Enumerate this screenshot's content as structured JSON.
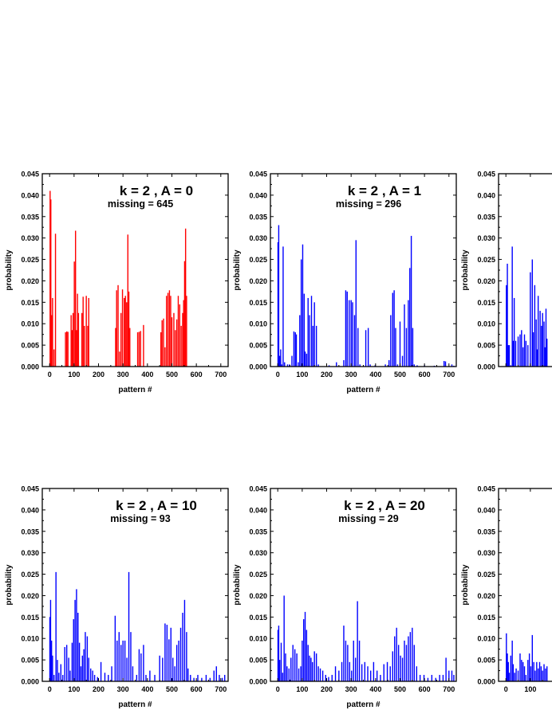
{
  "chart_data": [
    {
      "type": "bar",
      "title": "k = 2 , A = 0",
      "subtitle": "missing = 645",
      "xlabel": "pattern #",
      "ylabel": "probability",
      "xlim": [
        -30,
        730
      ],
      "ylim": [
        0,
        0.045
      ],
      "xticks": [
        "0",
        "100",
        "200",
        "300",
        "400",
        "500",
        "600",
        "700"
      ],
      "yticks": [
        "0.000",
        "0.005",
        "0.010",
        "0.015",
        "0.020",
        "0.025",
        "0.030",
        "0.035",
        "0.040",
        "0.045"
      ],
      "color": "#ff0000",
      "x": [
        2,
        5,
        9,
        12,
        18,
        24,
        65,
        70,
        75,
        88,
        92,
        96,
        101,
        106,
        110,
        114,
        118,
        132,
        137,
        142,
        150,
        156,
        160,
        270,
        274,
        280,
        286,
        292,
        298,
        305,
        310,
        315,
        320,
        324,
        328,
        360,
        366,
        372,
        384,
        455,
        460,
        466,
        472,
        478,
        484,
        490,
        495,
        500,
        508,
        514,
        520,
        526,
        532,
        538,
        544,
        548,
        552,
        556,
        560
      ],
      "values": [
        0.041,
        0.039,
        0.012,
        0.016,
        0.004,
        0.031,
        0.008,
        0.0082,
        0.0081,
        0.012,
        0.0085,
        0.0125,
        0.0245,
        0.0317,
        0.0085,
        0.017,
        0.0125,
        0.0125,
        0.0163,
        0.0095,
        0.0165,
        0.0095,
        0.016,
        0.009,
        0.0178,
        0.019,
        0.0035,
        0.0125,
        0.018,
        0.016,
        0.0165,
        0.015,
        0.0308,
        0.0175,
        0.009,
        0.008,
        0.0081,
        0.0083,
        0.0097,
        0.008,
        0.0108,
        0.0112,
        0.0045,
        0.0165,
        0.0172,
        0.0178,
        0.0165,
        0.0115,
        0.0125,
        0.0085,
        0.011,
        0.0165,
        0.0145,
        0.0095,
        0.0125,
        0.0155,
        0.0246,
        0.0322,
        0.0165
      ]
    },
    {
      "type": "bar",
      "title": "k = 2 , A = 1",
      "subtitle": "missing = 296",
      "xlabel": "pattern #",
      "ylabel": "probability",
      "xlim": [
        -30,
        730
      ],
      "ylim": [
        0,
        0.045
      ],
      "xticks": [
        "0",
        "100",
        "200",
        "300",
        "400",
        "500",
        "600",
        "700"
      ],
      "yticks": [
        "0.000",
        "0.005",
        "0.010",
        "0.015",
        "0.020",
        "0.025",
        "0.030",
        "0.035",
        "0.040",
        "0.045"
      ],
      "color": "#0000ff",
      "x": [
        1,
        4,
        8,
        12,
        16,
        22,
        28,
        40,
        48,
        58,
        66,
        72,
        76,
        84,
        90,
        96,
        102,
        108,
        112,
        118,
        124,
        130,
        138,
        144,
        150,
        158,
        166,
        210,
        240,
        270,
        278,
        284,
        292,
        300,
        306,
        314,
        320,
        328,
        336,
        360,
        370,
        378,
        398,
        440,
        455,
        462,
        470,
        476,
        482,
        490,
        500,
        510,
        518,
        526,
        534,
        540,
        546,
        552,
        558,
        570,
        600,
        640,
        680,
        686,
        712,
        720
      ],
      "values": [
        0.029,
        0.033,
        0.0025,
        0.004,
        0.0005,
        0.028,
        0.001,
        0.0005,
        0.0005,
        0.0025,
        0.0082,
        0.008,
        0.0075,
        0.001,
        0.012,
        0.025,
        0.0285,
        0.017,
        0.0035,
        0.003,
        0.016,
        0.012,
        0.0165,
        0.0095,
        0.015,
        0.0095,
        0.0005,
        0.0003,
        0.001,
        0.0015,
        0.0178,
        0.0175,
        0.0155,
        0.0155,
        0.015,
        0.012,
        0.0295,
        0.009,
        0.0005,
        0.0085,
        0.009,
        0.0005,
        0.0003,
        0.0005,
        0.0015,
        0.012,
        0.0172,
        0.0178,
        0.009,
        0.0005,
        0.0105,
        0.0025,
        0.0145,
        0.009,
        0.0155,
        0.023,
        0.0305,
        0.009,
        0.0005,
        0.0003,
        0.0003,
        0.0002,
        0.0013,
        0.0012,
        0.0005,
        0.0002
      ]
    },
    {
      "type": "bar",
      "title": "",
      "subtitle": "",
      "xlabel": "",
      "ylabel": "probability",
      "xlim": [
        -30,
        730
      ],
      "ylim": [
        0,
        0.045
      ],
      "xticks": [],
      "yticks": [
        "0.000",
        "0.005",
        "0.010",
        "0.015",
        "0.020",
        "0.025",
        "0.030",
        "0.035",
        "0.040",
        "0.045"
      ],
      "color": "#0000ff",
      "x": [
        2,
        6,
        10,
        14,
        20,
        26,
        30,
        34,
        40,
        50,
        58,
        64,
        70,
        76,
        82,
        90,
        100,
        108,
        112,
        118,
        124,
        128,
        132,
        140,
        146,
        150,
        156,
        160,
        164,
        168
      ],
      "values": [
        0.019,
        0.024,
        0.005,
        0.005,
        0.0003,
        0.028,
        0.006,
        0.016,
        0.006,
        0.007,
        0.0075,
        0.0085,
        0.0045,
        0.0075,
        0.006,
        0.005,
        0.022,
        0.025,
        0.008,
        0.019,
        0.011,
        0.004,
        0.0165,
        0.013,
        0.0095,
        0.0125,
        0.0105,
        0.0045,
        0.0135,
        0.0065
      ]
    },
    {
      "type": "bar",
      "title": "k = 2 , A = 10",
      "subtitle": "missing = 93",
      "xlabel": "pattern #",
      "ylabel": "probability",
      "xlim": [
        -30,
        730
      ],
      "ylim": [
        0,
        0.045
      ],
      "xticks": [
        "0",
        "100",
        "200",
        "300",
        "400",
        "500",
        "600",
        "700"
      ],
      "yticks": [
        "0.000",
        "0.005",
        "0.010",
        "0.015",
        "0.020",
        "0.025",
        "0.030",
        "0.035",
        "0.040",
        "0.045"
      ],
      "color": "#0000ff",
      "x": [
        1,
        4,
        8,
        12,
        18,
        26,
        32,
        38,
        46,
        54,
        62,
        70,
        78,
        84,
        92,
        98,
        104,
        110,
        116,
        122,
        128,
        134,
        140,
        146,
        154,
        160,
        168,
        176,
        184,
        196,
        210,
        226,
        240,
        254,
        268,
        276,
        284,
        292,
        300,
        308,
        316,
        324,
        332,
        340,
        356,
        366,
        374,
        384,
        394,
        410,
        430,
        450,
        462,
        472,
        480,
        488,
        496,
        504,
        512,
        520,
        528,
        536,
        544,
        552,
        560,
        566,
        576,
        590,
        606,
        622,
        640,
        656,
        672,
        682,
        694,
        706,
        716
      ],
      "values": [
        0.015,
        0.019,
        0.0095,
        0.006,
        0.0015,
        0.0255,
        0.005,
        0.002,
        0.004,
        0.0015,
        0.008,
        0.0085,
        0.0055,
        0.0025,
        0.009,
        0.0145,
        0.019,
        0.0215,
        0.016,
        0.009,
        0.0035,
        0.006,
        0.0075,
        0.0115,
        0.0105,
        0.0055,
        0.003,
        0.0025,
        0.0015,
        0.001,
        0.0045,
        0.002,
        0.0015,
        0.0035,
        0.0153,
        0.0095,
        0.0115,
        0.0085,
        0.0095,
        0.0095,
        0.0055,
        0.0255,
        0.0115,
        0.0035,
        0.0015,
        0.0075,
        0.0065,
        0.0085,
        0.0015,
        0.0025,
        0.0015,
        0.006,
        0.0055,
        0.0135,
        0.0132,
        0.0098,
        0.0125,
        0.0055,
        0.0035,
        0.0085,
        0.0095,
        0.0125,
        0.016,
        0.019,
        0.0115,
        0.003,
        0.0015,
        0.0008,
        0.0015,
        0.0008,
        0.0015,
        0.0008,
        0.0025,
        0.0035,
        0.0015,
        0.0008,
        0.0015
      ]
    },
    {
      "type": "bar",
      "title": "k = 2 , A = 20",
      "subtitle": "missing = 29",
      "xlabel": "pattern #",
      "ylabel": "probability",
      "xlim": [
        -30,
        730
      ],
      "ylim": [
        0,
        0.045
      ],
      "xticks": [
        "0",
        "100",
        "200",
        "300",
        "400",
        "500",
        "600",
        "700"
      ],
      "yticks": [
        "0.000",
        "0.005",
        "0.010",
        "0.015",
        "0.020",
        "0.025",
        "0.030",
        "0.035",
        "0.040",
        "0.045"
      ],
      "color": "#0000ff",
      "x": [
        1,
        4,
        8,
        14,
        20,
        26,
        32,
        38,
        46,
        54,
        62,
        70,
        78,
        86,
        94,
        100,
        106,
        112,
        118,
        124,
        130,
        136,
        142,
        150,
        158,
        166,
        174,
        184,
        196,
        208,
        222,
        236,
        250,
        262,
        270,
        278,
        286,
        294,
        302,
        310,
        318,
        326,
        334,
        344,
        356,
        368,
        380,
        392,
        406,
        420,
        434,
        448,
        460,
        470,
        478,
        486,
        494,
        502,
        510,
        518,
        526,
        534,
        542,
        550,
        558,
        568,
        582,
        598,
        614,
        630,
        646,
        662,
        676,
        688,
        700,
        712,
        720
      ],
      "values": [
        0.012,
        0.013,
        0.005,
        0.009,
        0.002,
        0.02,
        0.0065,
        0.0035,
        0.003,
        0.0055,
        0.0085,
        0.0075,
        0.0065,
        0.003,
        0.0035,
        0.0095,
        0.0145,
        0.0162,
        0.012,
        0.0085,
        0.006,
        0.0055,
        0.0045,
        0.007,
        0.0065,
        0.0035,
        0.003,
        0.0025,
        0.0015,
        0.001,
        0.0015,
        0.0035,
        0.0025,
        0.0045,
        0.013,
        0.0095,
        0.0085,
        0.0045,
        0.0025,
        0.0095,
        0.0055,
        0.0187,
        0.0095,
        0.004,
        0.0045,
        0.0035,
        0.0025,
        0.0045,
        0.0025,
        0.0015,
        0.004,
        0.0045,
        0.0035,
        0.007,
        0.0105,
        0.0125,
        0.0085,
        0.006,
        0.0055,
        0.0095,
        0.0085,
        0.0105,
        0.0115,
        0.0125,
        0.0085,
        0.0035,
        0.0015,
        0.0015,
        0.0008,
        0.0015,
        0.0008,
        0.0015,
        0.0015,
        0.0055,
        0.0025,
        0.0025,
        0.0015
      ]
    },
    {
      "type": "bar",
      "title": "",
      "subtitle": "",
      "xlabel": "",
      "ylabel": "probability",
      "xlim": [
        -30,
        730
      ],
      "ylim": [
        0,
        0.045
      ],
      "xticks": [
        "0",
        "100"
      ],
      "yticks": [
        "0.000",
        "0.005",
        "0.010",
        "0.015",
        "0.020",
        "0.025",
        "0.030",
        "0.035",
        "0.040",
        "0.045"
      ],
      "color": "#0000ff",
      "x": [
        2,
        6,
        10,
        14,
        20,
        26,
        30,
        36,
        42,
        50,
        58,
        64,
        70,
        76,
        82,
        90,
        96,
        102,
        108,
        114,
        120,
        126,
        132,
        138,
        144,
        150,
        156,
        162,
        168
      ],
      "values": [
        0.0112,
        0.0065,
        0.0045,
        0.002,
        0.006,
        0.0095,
        0.004,
        0.002,
        0.003,
        0.0025,
        0.0065,
        0.005,
        0.0045,
        0.0035,
        0.0015,
        0.005,
        0.0065,
        0.0035,
        0.0108,
        0.0045,
        0.0025,
        0.0045,
        0.003,
        0.0045,
        0.0035,
        0.0025,
        0.004,
        0.003,
        0.0035
      ]
    }
  ]
}
